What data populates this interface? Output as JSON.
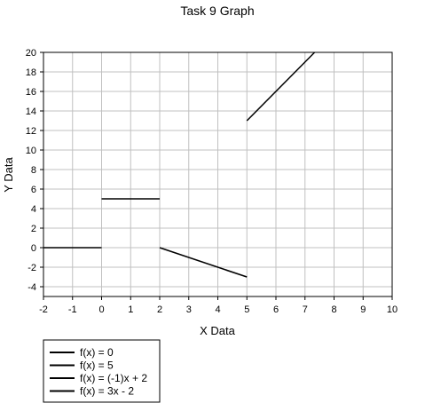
{
  "chart_data": {
    "type": "line",
    "title": "Task 9 Graph",
    "xlabel": "X Data",
    "ylabel": "Y Data",
    "xlim": [
      -2,
      10
    ],
    "ylim": [
      -5,
      20
    ],
    "x_ticks": [
      -2,
      -1,
      0,
      1,
      2,
      3,
      4,
      5,
      6,
      7,
      8,
      9,
      10
    ],
    "y_ticks": [
      -4,
      -2,
      0,
      2,
      4,
      6,
      8,
      10,
      12,
      14,
      16,
      18,
      20
    ],
    "grid": true,
    "legend_position": "bottom-left",
    "series": [
      {
        "name": "f(x) = 0",
        "x": [
          -2,
          0
        ],
        "y": [
          0,
          0
        ],
        "color": "#000000"
      },
      {
        "name": "f(x) = 5",
        "x": [
          0,
          2
        ],
        "y": [
          5,
          5
        ],
        "color": "#000000"
      },
      {
        "name": "f(x) = (-1)x + 2",
        "x": [
          2,
          5
        ],
        "y": [
          0,
          -3
        ],
        "color": "#000000"
      },
      {
        "name": "f(x) = 3x - 2",
        "x": [
          5,
          7.33
        ],
        "y": [
          13,
          20
        ],
        "color": "#000000"
      }
    ]
  }
}
